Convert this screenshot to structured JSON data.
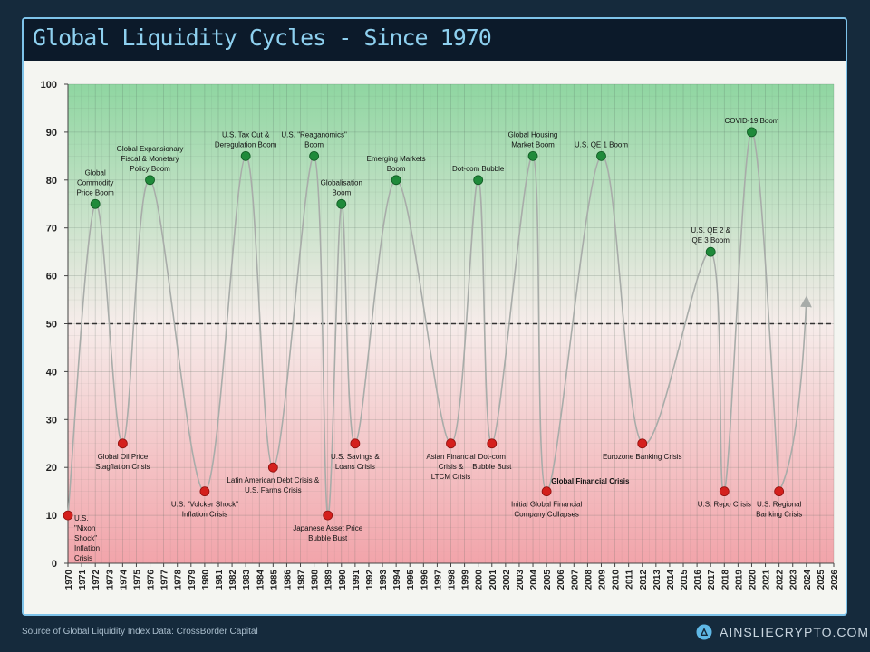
{
  "header": {
    "title": "Global Liquidity Cycles - Since 1970"
  },
  "footer": {
    "source": "Source of Global Liquidity Index Data: CrossBorder Capital",
    "brand": "AINSLIECRYPTO.COM.AU"
  },
  "colors": {
    "peak": "#1f8a3a",
    "trough": "#d4201d",
    "line": "#a8aca9",
    "midline": "#333333"
  },
  "chart_data": {
    "type": "line",
    "title": "Global Liquidity Cycles - Since 1970",
    "ylim": [
      0,
      100
    ],
    "y_ticks": [
      0,
      10,
      20,
      30,
      40,
      50,
      60,
      70,
      80,
      90,
      100
    ],
    "x_ticks": [
      1970,
      1971,
      1972,
      1973,
      1974,
      1975,
      1976,
      1977,
      1978,
      1979,
      1980,
      1981,
      1982,
      1983,
      1984,
      1985,
      1986,
      1987,
      1988,
      1989,
      1990,
      1991,
      1992,
      1993,
      1994,
      1995,
      1996,
      1997,
      1998,
      1999,
      2000,
      2001,
      2002,
      2003,
      2004,
      2005,
      2006,
      2007,
      2008,
      2009,
      2010,
      2011,
      2012,
      2013,
      2014,
      2015,
      2016,
      2017,
      2018,
      2019,
      2020,
      2021,
      2022,
      2023,
      2024,
      2025,
      2026
    ],
    "reference_line": 50,
    "grid": true,
    "points": [
      {
        "year": 1970,
        "value": 10,
        "kind": "trough",
        "label": [
          "U.S.",
          "\"Nixon",
          "Shock\"",
          "Inflation",
          "Crisis"
        ]
      },
      {
        "year": 1972,
        "value": 75,
        "kind": "peak",
        "label": [
          "Global",
          "Commodity",
          "Price Boom"
        ]
      },
      {
        "year": 1974,
        "value": 25,
        "kind": "trough",
        "label": [
          "Global Oil Price",
          "Stagflation Crisis"
        ]
      },
      {
        "year": 1976,
        "value": 80,
        "kind": "peak",
        "label": [
          "Global Expansionary",
          "Fiscal & Monetary",
          "Policy Boom"
        ]
      },
      {
        "year": 1980,
        "value": 15,
        "kind": "trough",
        "label": [
          "U.S. \"Volcker Shock\"",
          "Inflation Crisis"
        ]
      },
      {
        "year": 1983,
        "value": 85,
        "kind": "peak",
        "label": [
          "U.S. Tax Cut &",
          "Deregulation Boom"
        ]
      },
      {
        "year": 1985,
        "value": 20,
        "kind": "trough",
        "label": [
          "Latin American Debt Crisis &",
          "U.S. Farms Crisis"
        ]
      },
      {
        "year": 1988,
        "value": 85,
        "kind": "peak",
        "label": [
          "U.S. \"Reaganomics\"",
          "Boom"
        ]
      },
      {
        "year": 1989,
        "value": 10,
        "kind": "trough",
        "label": [
          "Japanese Asset Price",
          "Bubble Bust"
        ]
      },
      {
        "year": 1990,
        "value": 75,
        "kind": "peak",
        "label": [
          "Globalisation",
          "Boom"
        ]
      },
      {
        "year": 1991,
        "value": 25,
        "kind": "trough",
        "label": [
          "U.S. Savings &",
          "Loans Crisis"
        ]
      },
      {
        "year": 1994,
        "value": 80,
        "kind": "peak",
        "label": [
          "Emerging Markets",
          "Boom"
        ]
      },
      {
        "year": 1998,
        "value": 25,
        "kind": "trough",
        "label": [
          "Asian Financial",
          "Crisis &",
          "LTCM Crisis"
        ]
      },
      {
        "year": 2000,
        "value": 80,
        "kind": "peak",
        "label": [
          "Dot-com Bubble"
        ]
      },
      {
        "year": 2001,
        "value": 25,
        "kind": "trough",
        "label": [
          "Dot-com",
          "Bubble Bust"
        ]
      },
      {
        "year": 2004,
        "value": 85,
        "kind": "peak",
        "label": [
          "Global Housing",
          "Market Boom"
        ]
      },
      {
        "year": 2005,
        "value": 15,
        "kind": "trough",
        "label": [
          "Initial Global Financial",
          "Company Collapses"
        ]
      },
      {
        "year": 2009,
        "value": 85,
        "kind": "peak",
        "label": [
          "U.S. QE 1 Boom"
        ]
      },
      {
        "year": 2012,
        "value": 25,
        "kind": "trough",
        "label": [
          "Eurozone Banking Crisis"
        ]
      },
      {
        "year": 2017,
        "value": 65,
        "kind": "peak",
        "label": [
          "U.S. QE 2 &",
          "QE 3 Boom"
        ]
      },
      {
        "year": 2018,
        "value": 15,
        "kind": "trough",
        "label": [
          "U.S. Repo Crisis"
        ]
      },
      {
        "year": 2020,
        "value": 90,
        "kind": "peak",
        "label": [
          "COVID-19 Boom"
        ]
      },
      {
        "year": 2022,
        "value": 15,
        "kind": "trough",
        "label": [
          "U.S. Regional",
          "Banking Crisis"
        ]
      }
    ],
    "annotations": [
      {
        "text": "Global Financial Crisis",
        "year": 2006,
        "value": 17
      }
    ],
    "projection": {
      "from": {
        "year": 2022,
        "value": 15
      },
      "to": {
        "year": 2024,
        "value": 55
      }
    }
  }
}
